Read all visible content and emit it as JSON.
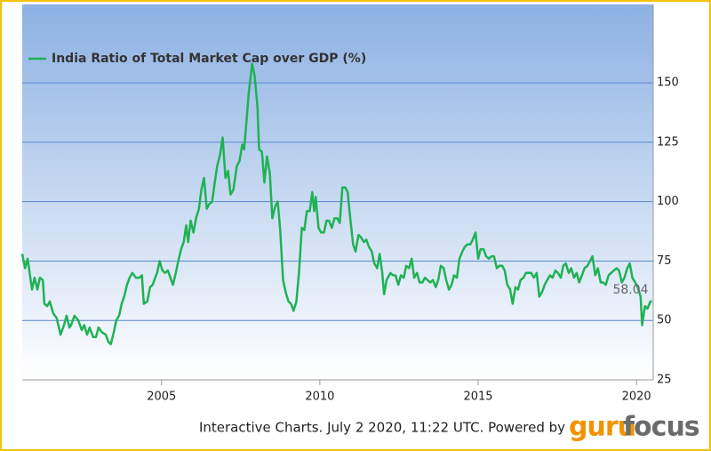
{
  "chart_data": {
    "type": "line",
    "legend": "top-left",
    "grid": true,
    "series": [
      {
        "name": "India Ratio of Total Market Cap over GDP (%)",
        "color": "#1fb254",
        "x": [
          2000.6,
          2000.69,
          2000.77,
          2000.91,
          2000.99,
          2001.08,
          2001.16,
          2001.25,
          2001.3,
          2001.39,
          2001.47,
          2001.58,
          2001.69,
          2001.81,
          2001.92,
          2002.0,
          2002.09,
          2002.14,
          2002.25,
          2002.37,
          2002.48,
          2002.56,
          2002.65,
          2002.73,
          2002.84,
          2002.93,
          2003.01,
          2003.12,
          2003.24,
          2003.32,
          2003.4,
          2003.49,
          2003.57,
          2003.66,
          2003.74,
          2003.82,
          2003.91,
          2003.99,
          2004.08,
          2004.19,
          2004.3,
          2004.38,
          2004.44,
          2004.55,
          2004.64,
          2004.72,
          2004.8,
          2004.86,
          2004.94,
          2005.03,
          2005.11,
          2005.2,
          2005.28,
          2005.36,
          2005.45,
          2005.53,
          2005.62,
          2005.7,
          2005.78,
          2005.84,
          2005.92,
          2006.01,
          2006.09,
          2006.18,
          2006.26,
          2006.34,
          2006.43,
          2006.51,
          2006.6,
          2006.68,
          2006.76,
          2006.85,
          2006.93,
          2007.02,
          2007.1,
          2007.18,
          2007.27,
          2007.38,
          2007.46,
          2007.55,
          2007.61,
          2007.66,
          2007.75,
          2007.86,
          2007.94,
          2008.03,
          2008.08,
          2008.17,
          2008.25,
          2008.33,
          2008.42,
          2008.5,
          2008.59,
          2008.67,
          2008.75,
          2008.84,
          2008.92,
          2009.01,
          2009.09,
          2009.17,
          2009.26,
          2009.34,
          2009.43,
          2009.51,
          2009.59,
          2009.68,
          2009.76,
          2009.82,
          2009.87,
          2009.96,
          2010.04,
          2010.13,
          2010.21,
          2010.29,
          2010.38,
          2010.46,
          2010.55,
          2010.63,
          2010.71,
          2010.8,
          2010.88,
          2010.97,
          2011.05,
          2011.13,
          2011.22,
          2011.3,
          2011.39,
          2011.47,
          2011.55,
          2011.64,
          2011.72,
          2011.81,
          2011.89,
          2011.97,
          2012.03,
          2012.11,
          2012.23,
          2012.31,
          2012.39,
          2012.48,
          2012.56,
          2012.65,
          2012.73,
          2012.82,
          2012.9,
          2012.98,
          2013.07,
          2013.15,
          2013.24,
          2013.32,
          2013.4,
          2013.49,
          2013.57,
          2013.66,
          2013.74,
          2013.82,
          2013.91,
          2013.99,
          2014.08,
          2014.16,
          2014.24,
          2014.33,
          2014.41,
          2014.5,
          2014.58,
          2014.66,
          2014.75,
          2014.83,
          2014.92,
          2015.0,
          2015.08,
          2015.17,
          2015.25,
          2015.34,
          2015.42,
          2015.5,
          2015.59,
          2015.67,
          2015.76,
          2015.84,
          2015.92,
          2016.01,
          2016.09,
          2016.18,
          2016.26,
          2016.34,
          2016.43,
          2016.51,
          2016.6,
          2016.68,
          2016.76,
          2016.85,
          2016.93,
          2017.02,
          2017.1,
          2017.18,
          2017.27,
          2017.35,
          2017.44,
          2017.52,
          2017.61,
          2017.69,
          2017.77,
          2017.86,
          2017.94,
          2018.03,
          2018.11,
          2018.19,
          2018.28,
          2018.36,
          2018.45,
          2018.53,
          2018.61,
          2018.7,
          2018.78,
          2018.87,
          2018.95,
          2019.03,
          2019.12,
          2019.2,
          2019.29,
          2019.37,
          2019.45,
          2019.54,
          2019.62,
          2019.71,
          2019.79,
          2019.87,
          2019.96,
          2020.04,
          2020.13,
          2020.18,
          2020.27,
          2020.35,
          2020.44,
          2020.49
        ],
        "values": [
          78,
          72,
          76,
          63,
          68,
          63,
          68,
          67,
          57,
          56,
          58,
          53,
          51,
          44,
          48,
          52,
          47,
          48,
          52,
          50,
          46,
          48,
          44,
          47,
          43,
          43,
          47,
          45,
          44,
          41,
          40,
          45,
          50,
          52,
          57,
          60,
          65,
          68,
          70,
          68,
          68,
          69,
          57,
          58,
          64,
          65,
          68,
          70,
          75,
          71,
          70,
          71,
          68,
          65,
          70,
          75,
          80,
          83,
          90,
          83,
          92,
          87,
          93,
          97,
          105,
          110,
          97,
          99,
          100,
          108,
          115,
          120,
          127,
          110,
          113,
          103,
          105,
          115,
          117,
          124,
          122,
          130,
          145,
          158,
          153,
          140,
          122,
          121,
          108,
          119,
          112,
          93,
          98,
          100,
          88,
          67,
          62,
          58,
          57,
          54,
          58,
          70,
          89,
          88,
          96,
          96,
          104,
          96,
          102,
          89,
          87,
          87,
          92,
          92,
          89,
          93,
          93,
          91,
          106,
          106,
          104,
          92,
          82,
          79,
          86,
          85,
          83,
          84,
          81,
          79,
          74,
          72,
          78,
          70,
          61,
          67,
          70,
          69,
          69,
          65,
          69,
          68,
          73,
          72,
          76,
          68,
          70,
          66,
          66,
          68,
          67,
          66,
          67,
          64,
          67,
          73,
          72,
          67,
          63,
          65,
          69,
          68,
          76,
          79,
          81,
          82,
          82,
          84,
          87,
          76,
          80,
          80,
          77,
          76,
          77,
          77,
          72,
          73,
          73,
          71,
          65,
          63,
          57,
          64,
          63,
          67,
          68,
          70,
          70,
          70,
          68,
          70,
          60,
          62,
          65,
          67,
          69,
          68,
          71,
          70,
          68,
          73,
          74,
          70,
          72,
          68,
          70,
          66,
          69,
          72,
          73,
          75,
          77,
          69,
          72,
          66,
          66,
          65,
          69,
          70,
          71,
          72,
          71,
          66,
          68,
          72,
          74,
          68,
          66,
          64,
          60,
          48,
          56,
          55,
          58,
          58.04
        ]
      }
    ],
    "annotation": "58.04",
    "xlim": [
      2000.6,
      2020.53
    ],
    "xticks": [
      2005,
      2010,
      2015,
      2020
    ],
    "ylim": [
      25,
      183
    ],
    "yticks": [
      25,
      50,
      75,
      100,
      125,
      150
    ]
  },
  "footer": {
    "text": "Interactive Charts. July 2 2020, 11:22 UTC. Powered by",
    "logo_guru": "guru",
    "logo_focus": "focus"
  }
}
